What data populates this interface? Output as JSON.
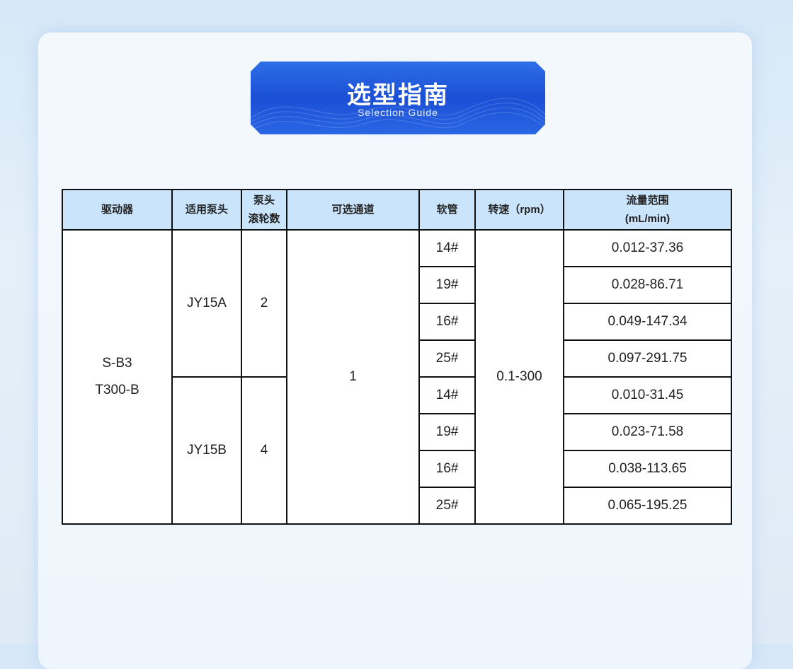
{
  "banner": {
    "title": "选型指南",
    "subtitle": "Selection  Guide"
  },
  "table": {
    "headers": [
      "驱动器",
      "适用泵头",
      "泵头滚轮数",
      "可选通道",
      "软管",
      "转速（rpm）",
      "流量范围(mL/min)"
    ],
    "header_lines": {
      "rollers_1": "泵头",
      "rollers_2": "滚轮数",
      "flow_1": "流量范围",
      "flow_2": "(mL/min)"
    },
    "driver_1": "S-B3",
    "driver_2": "T300-B",
    "channels": "1",
    "speed": "0.1-300",
    "groups": [
      {
        "pump_head": "JY15A",
        "rollers": "2",
        "rows": [
          {
            "tube": "14#",
            "flow": "0.012-37.36"
          },
          {
            "tube": "19#",
            "flow": "0.028-86.71"
          },
          {
            "tube": "16#",
            "flow": "0.049-147.34"
          },
          {
            "tube": "25#",
            "flow": "0.097-291.75"
          }
        ]
      },
      {
        "pump_head": "JY15B",
        "rollers": "4",
        "rows": [
          {
            "tube": "14#",
            "flow": "0.010-31.45"
          },
          {
            "tube": "19#",
            "flow": "0.023-71.58"
          },
          {
            "tube": "16#",
            "flow": "0.038-113.65"
          },
          {
            "tube": "25#",
            "flow": "0.065-195.25"
          }
        ]
      }
    ]
  },
  "colors": {
    "header_bg": "#c9e4fb",
    "banner": "#1b4fd6",
    "border": "#111111"
  }
}
